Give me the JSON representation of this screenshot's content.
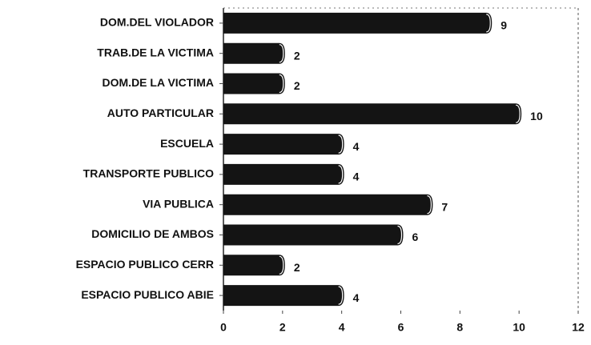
{
  "chart_data": {
    "type": "bar",
    "orientation": "horizontal",
    "categories": [
      "DOM.DEL VIOLADOR",
      "TRAB.DE LA VICTIMA",
      "DOM.DE LA VICTIMA",
      "AUTO PARTICULAR",
      "ESCUELA",
      "TRANSPORTE PUBLICO",
      "VIA PUBLICA",
      "DOMICILIO DE AMBOS",
      "ESPACIO PUBLICO CERR",
      "ESPACIO PUBLICO ABIE"
    ],
    "values": [
      9,
      2,
      2,
      10,
      4,
      4,
      7,
      6,
      2,
      4
    ],
    "color": "#141414",
    "xlim": [
      0,
      12
    ],
    "xticks": [
      0,
      2,
      4,
      6,
      8,
      10,
      12
    ]
  }
}
